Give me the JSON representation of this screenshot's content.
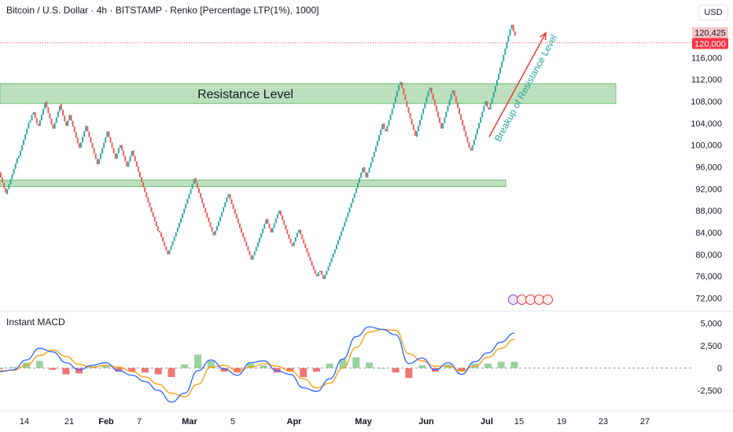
{
  "header": {
    "title": "Bitcoin / U.S. Dollar · 4h · BITSTAMP · Renko [Percentage LTP(1%), 1000]",
    "currency": "USD"
  },
  "price_scale": {
    "ticks": [
      72000,
      76000,
      80000,
      84000,
      88000,
      92000,
      96000,
      100000,
      104000,
      108000,
      112000,
      116000
    ],
    "tick_labels": [
      "72,000",
      "76,000",
      "80,000",
      "84,000",
      "88,000",
      "92,000",
      "96,000",
      "100,000",
      "104,000",
      "108,000",
      "112,000",
      "116,000"
    ],
    "current_price_label": "120,425",
    "level_label": "120,000"
  },
  "time_axis": {
    "labels": [
      "14",
      "21",
      "Feb",
      "7",
      "Mar",
      "5",
      "Apr",
      "May",
      "Jun",
      "Jul",
      "15",
      "19",
      "23",
      "27"
    ]
  },
  "annotations": {
    "resistance_label": "Resistance Level",
    "breakout_label": "Breakup of Resistance Level"
  },
  "macd": {
    "title": "Instant MACD",
    "tick_labels": [
      "5,000",
      "2,500",
      "0",
      "-2,500"
    ]
  },
  "colors": {
    "up": "#26a69a",
    "down": "#ef5350",
    "zone_fill": "#a5d6a7",
    "macd_line": "#2962ff",
    "signal_line": "#ff9800",
    "badge_red": "#e03a3a"
  },
  "chart_data": {
    "type": "renko",
    "box_size_percent": 1,
    "y_range": [
      70500,
      122500
    ],
    "zones": [
      {
        "name": "Resistance Level",
        "from": 107600,
        "to": 111200
      },
      {
        "name": "",
        "from": 92400,
        "to": 93600
      }
    ],
    "price_path": [
      95000,
      91000,
      98000,
      104500,
      106000,
      103500,
      108000,
      103000,
      107500,
      103500,
      105500,
      99500,
      103500,
      96500,
      102500,
      97500,
      100000,
      96000,
      99000,
      84000,
      80000,
      94000,
      83500,
      91000,
      79000,
      86500,
      84000,
      88000,
      81500,
      84500,
      76000,
      77000,
      75500,
      96000,
      94000,
      104000,
      102500,
      111500,
      108000,
      101500,
      110500,
      103000,
      110000,
      101500,
      99000,
      108000,
      106500,
      122000,
      120000
    ],
    "breakout_arrow": {
      "from": 101500,
      "to": 120500
    },
    "macd": {
      "y_range": [
        -4500,
        6000
      ],
      "macd_line": [
        -400,
        -200,
        900,
        2200,
        1800,
        600,
        -200,
        300,
        600,
        -300,
        -800,
        -1500,
        -2500,
        -3800,
        -2800,
        -300,
        900,
        -100,
        -800,
        600,
        800,
        -300,
        -700,
        -2200,
        -2600,
        -1200,
        1000,
        3500,
        4600,
        4300,
        3700,
        500,
        1100,
        -200,
        600,
        -700,
        700,
        1700,
        2900,
        3900
      ],
      "signal_line": [
        -300,
        -250,
        300,
        1400,
        2000,
        1300,
        400,
        100,
        300,
        100,
        -400,
        -1000,
        -1800,
        -2800,
        -3200,
        -1800,
        100,
        300,
        -300,
        100,
        500,
        200,
        -300,
        -1200,
        -2200,
        -1700,
        0,
        2300,
        4000,
        4300,
        4200,
        1600,
        800,
        200,
        200,
        -300,
        200,
        1200,
        2200,
        3200
      ],
      "histogram": [
        -100,
        100,
        600,
        800,
        -200,
        -700,
        -600,
        200,
        300,
        -400,
        -400,
        -500,
        -700,
        -1000,
        400,
        1500,
        800,
        -400,
        -500,
        500,
        300,
        -500,
        -400,
        -1000,
        -400,
        500,
        1000,
        1200,
        600,
        0,
        -500,
        -1100,
        300,
        -400,
        400,
        -400,
        500,
        500,
        700,
        700
      ]
    }
  }
}
